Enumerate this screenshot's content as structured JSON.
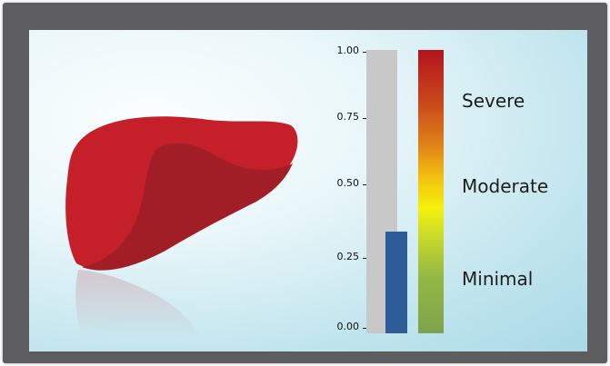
{
  "scale": {
    "ticks": [
      "1.00",
      "0.75",
      "0.50",
      "0.25",
      "0.00"
    ],
    "range": [
      0,
      1
    ],
    "level": 0.36,
    "level_color": "#2f5d99"
  },
  "severity_labels": [
    "Severe",
    "Moderate",
    "Minimal"
  ],
  "gradient_colors": [
    "#b3141c",
    "#e07f18",
    "#f4f10e",
    "#7ea34d"
  ],
  "organ_icon": "liver-illustration"
}
